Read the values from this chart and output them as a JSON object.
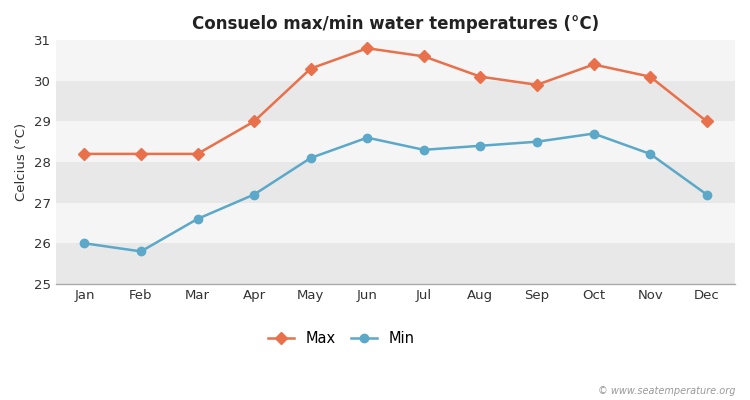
{
  "months": [
    "Jan",
    "Feb",
    "Mar",
    "Apr",
    "May",
    "Jun",
    "Jul",
    "Aug",
    "Sep",
    "Oct",
    "Nov",
    "Dec"
  ],
  "max_temps": [
    28.2,
    28.2,
    28.2,
    29.0,
    30.3,
    30.8,
    30.6,
    30.1,
    29.9,
    30.4,
    30.1,
    29.0
  ],
  "min_temps": [
    26.0,
    25.8,
    26.6,
    27.2,
    28.1,
    28.6,
    28.3,
    28.4,
    28.5,
    28.7,
    28.2,
    27.2
  ],
  "max_color": "#e8704a",
  "min_color": "#5ba8c9",
  "title": "Consuelo max/min water temperatures (°C)",
  "ylabel": "Celcius (°C)",
  "ylim": [
    25,
    31
  ],
  "yticks": [
    25,
    26,
    27,
    28,
    29,
    30,
    31
  ],
  "band_colors": [
    "#e8e8e8",
    "#f5f5f5"
  ],
  "fig_bg": "#ffffff",
  "watermark": "© www.seatemperature.org",
  "legend_labels": [
    "Max",
    "Min"
  ]
}
